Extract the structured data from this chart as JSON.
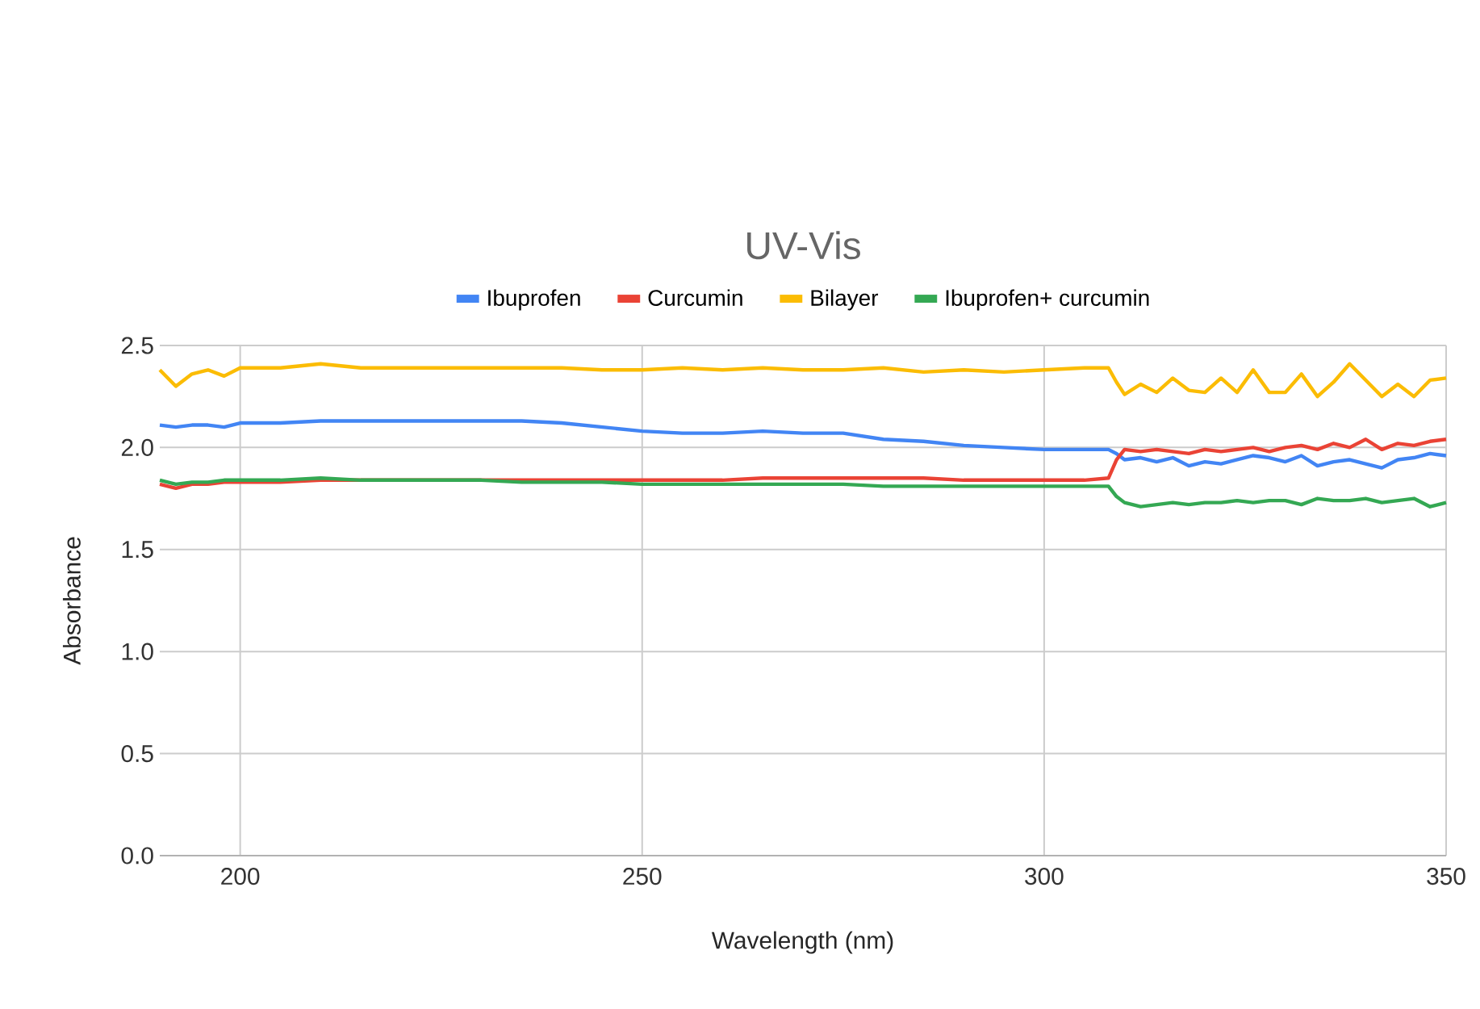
{
  "chart_data": {
    "type": "line",
    "title": "UV-Vis",
    "xlabel": "Wavelength (nm)",
    "ylabel": "Absorbance",
    "x": [
      190,
      192,
      194,
      196,
      198,
      200,
      205,
      210,
      215,
      220,
      225,
      230,
      235,
      240,
      245,
      250,
      255,
      260,
      265,
      270,
      275,
      280,
      285,
      290,
      295,
      300,
      305,
      308,
      309,
      310,
      312,
      314,
      316,
      318,
      320,
      322,
      324,
      326,
      328,
      330,
      332,
      334,
      336,
      338,
      340,
      342,
      344,
      346,
      348,
      350
    ],
    "series": [
      {
        "name": "Ibuprofen",
        "color": "#4285f4",
        "values": [
          2.11,
          2.1,
          2.11,
          2.11,
          2.1,
          2.12,
          2.12,
          2.13,
          2.13,
          2.13,
          2.13,
          2.13,
          2.13,
          2.12,
          2.1,
          2.08,
          2.07,
          2.07,
          2.08,
          2.07,
          2.07,
          2.04,
          2.03,
          2.01,
          2.0,
          1.99,
          1.99,
          1.99,
          1.97,
          1.94,
          1.95,
          1.93,
          1.95,
          1.91,
          1.93,
          1.92,
          1.94,
          1.96,
          1.95,
          1.93,
          1.96,
          1.91,
          1.93,
          1.94,
          1.92,
          1.9,
          1.94,
          1.95,
          1.97,
          1.96
        ]
      },
      {
        "name": "Curcumin",
        "color": "#ea4335",
        "values": [
          1.82,
          1.8,
          1.82,
          1.82,
          1.83,
          1.83,
          1.83,
          1.84,
          1.84,
          1.84,
          1.84,
          1.84,
          1.84,
          1.84,
          1.84,
          1.84,
          1.84,
          1.84,
          1.85,
          1.85,
          1.85,
          1.85,
          1.85,
          1.84,
          1.84,
          1.84,
          1.84,
          1.85,
          1.94,
          1.99,
          1.98,
          1.99,
          1.98,
          1.97,
          1.99,
          1.98,
          1.99,
          2.0,
          1.98,
          2.0,
          2.01,
          1.99,
          2.02,
          2.0,
          2.04,
          1.99,
          2.02,
          2.01,
          2.03,
          2.04
        ]
      },
      {
        "name": "Bilayer",
        "color": "#fbbc04",
        "values": [
          2.38,
          2.3,
          2.36,
          2.38,
          2.35,
          2.39,
          2.39,
          2.41,
          2.39,
          2.39,
          2.39,
          2.39,
          2.39,
          2.39,
          2.38,
          2.38,
          2.39,
          2.38,
          2.39,
          2.38,
          2.38,
          2.39,
          2.37,
          2.38,
          2.37,
          2.38,
          2.39,
          2.39,
          2.32,
          2.26,
          2.31,
          2.27,
          2.34,
          2.28,
          2.27,
          2.34,
          2.27,
          2.38,
          2.27,
          2.27,
          2.36,
          2.25,
          2.32,
          2.41,
          2.33,
          2.25,
          2.31,
          2.25,
          2.33,
          2.34
        ]
      },
      {
        "name": "Ibuprofen+ curcumin",
        "color": "#34a853",
        "values": [
          1.84,
          1.82,
          1.83,
          1.83,
          1.84,
          1.84,
          1.84,
          1.85,
          1.84,
          1.84,
          1.84,
          1.84,
          1.83,
          1.83,
          1.83,
          1.82,
          1.82,
          1.82,
          1.82,
          1.82,
          1.82,
          1.81,
          1.81,
          1.81,
          1.81,
          1.81,
          1.81,
          1.81,
          1.76,
          1.73,
          1.71,
          1.72,
          1.73,
          1.72,
          1.73,
          1.73,
          1.74,
          1.73,
          1.74,
          1.74,
          1.72,
          1.75,
          1.74,
          1.74,
          1.75,
          1.73,
          1.74,
          1.75,
          1.71,
          1.73
        ]
      }
    ],
    "xlim": [
      190,
      350
    ],
    "ylim": [
      0,
      2.5
    ],
    "xticks": [
      200,
      250,
      300,
      350
    ],
    "yticks": [
      {
        "value": 0,
        "label": "0.0"
      },
      0.5,
      {
        "value": 1,
        "label": "1.0"
      },
      1.5,
      {
        "value": 2,
        "label": "2.0"
      },
      2.5
    ],
    "grid": true,
    "legend": "top",
    "marker": "none",
    "line_style": "solid"
  }
}
